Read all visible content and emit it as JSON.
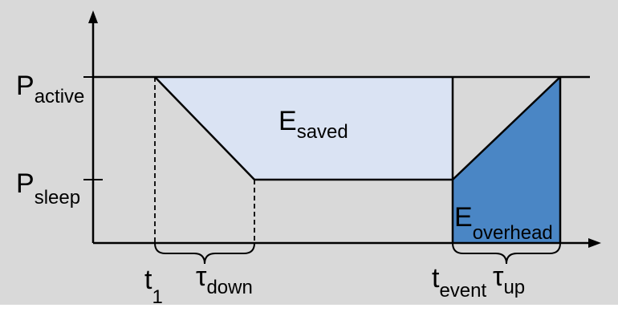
{
  "colors": {
    "background": "#d9d9d9",
    "saved_region": "#dae3f3",
    "overhead_region": "#4a86c5",
    "stroke": "#000000"
  },
  "labels": {
    "p_active": {
      "main": "P",
      "sub": "active"
    },
    "p_sleep": {
      "main": "P",
      "sub": "sleep"
    },
    "e_saved": {
      "main": "E",
      "sub": "saved"
    },
    "e_overhead": {
      "main": "E",
      "sub": "overhead"
    },
    "t1": {
      "main": "t",
      "sub": "1"
    },
    "tau_down": {
      "main": "τ",
      "sub": "down"
    },
    "t_event": {
      "main": "t",
      "sub": "event"
    },
    "tau_up": {
      "main": "τ",
      "sub": "up"
    }
  }
}
